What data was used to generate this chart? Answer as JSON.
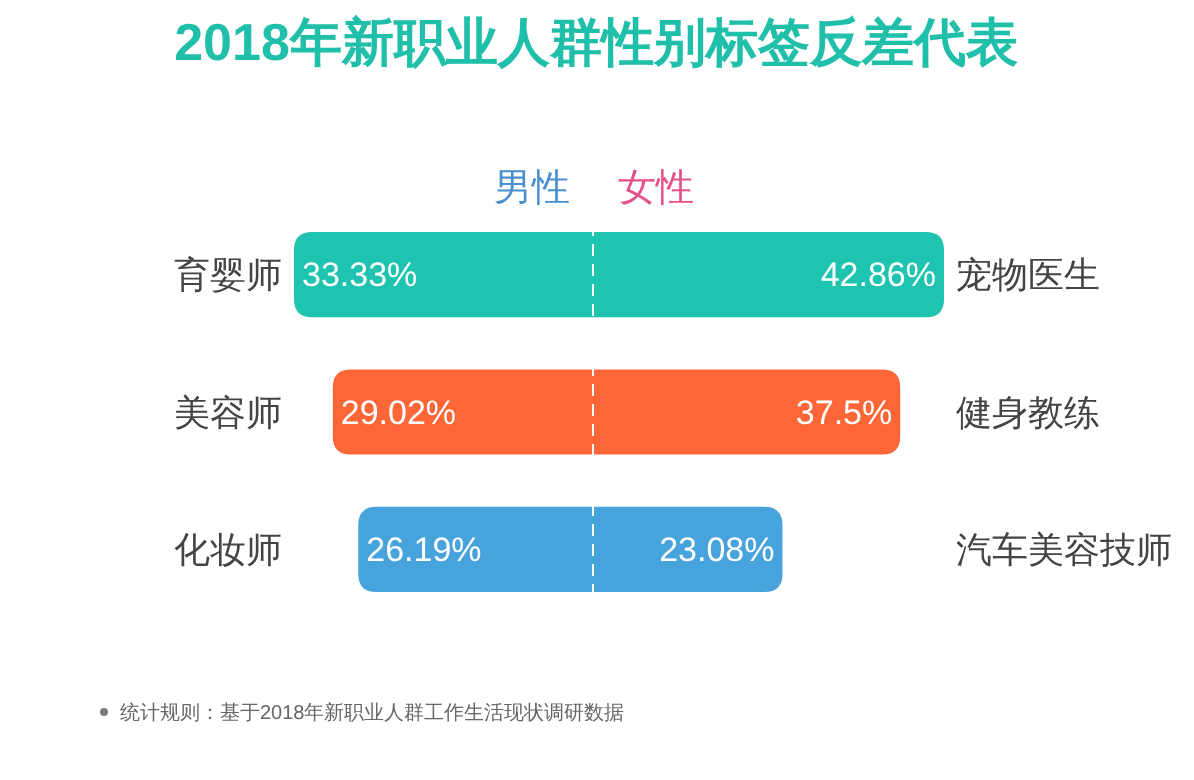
{
  "chart_data": [
    {
      "type": "bar",
      "orientation": "horizontal",
      "title": "2018年新职业人群性别标签反差代表",
      "categories": [
        "育婴师",
        "美容师",
        "化妆师"
      ],
      "series": [
        {
          "name": "男性",
          "values": [
            33.33,
            29.02,
            26.19
          ],
          "value_labels": [
            "33.33%",
            "29.02%",
            "26.19%"
          ],
          "colors": [
            "#1fc4b0",
            "#fd6636",
            "#47a3dc"
          ]
        }
      ],
      "tick_labels": "y",
      "legend": "top",
      "annotations": [
        "统计规则：基于2018年新职业人群工作生活现状调研数据"
      ]
    },
    {
      "type": "bar",
      "orientation": "horizontal",
      "categories": [
        "宠物医生",
        "健身教练",
        "汽车美容技师"
      ],
      "series": [
        {
          "name": "女性",
          "values": [
            42.86,
            37.5,
            23.08
          ],
          "value_labels": [
            "42.86%",
            "37.5%",
            "23.08%"
          ],
          "colors": [
            "#1fc4b0",
            "#fd6636",
            "#47a3dc"
          ]
        }
      ],
      "tick_labels": "y",
      "legend": "top"
    }
  ]
}
